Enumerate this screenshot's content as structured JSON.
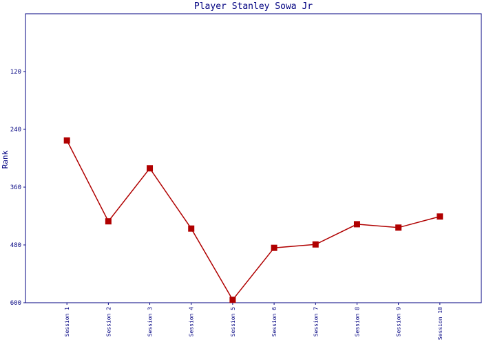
{
  "chart_data": {
    "type": "line",
    "title": "Player Stanley Sowa Jr",
    "y_label": "Rank",
    "categories": [
      "Session 1",
      "Session 2",
      "Session 3",
      "Session 4",
      "Session 5",
      "Session 6",
      "Session 7",
      "Session 8",
      "Session 9",
      "Session 10"
    ],
    "series": [
      {
        "name": "Rank",
        "color": "#b00000",
        "values": [
          263,
          431,
          321,
          446,
          594,
          486,
          479,
          437,
          444,
          421
        ]
      }
    ],
    "ylim": [
      600,
      0
    ],
    "yticks": [
      120,
      240,
      360,
      480,
      600
    ],
    "grid": false
  }
}
